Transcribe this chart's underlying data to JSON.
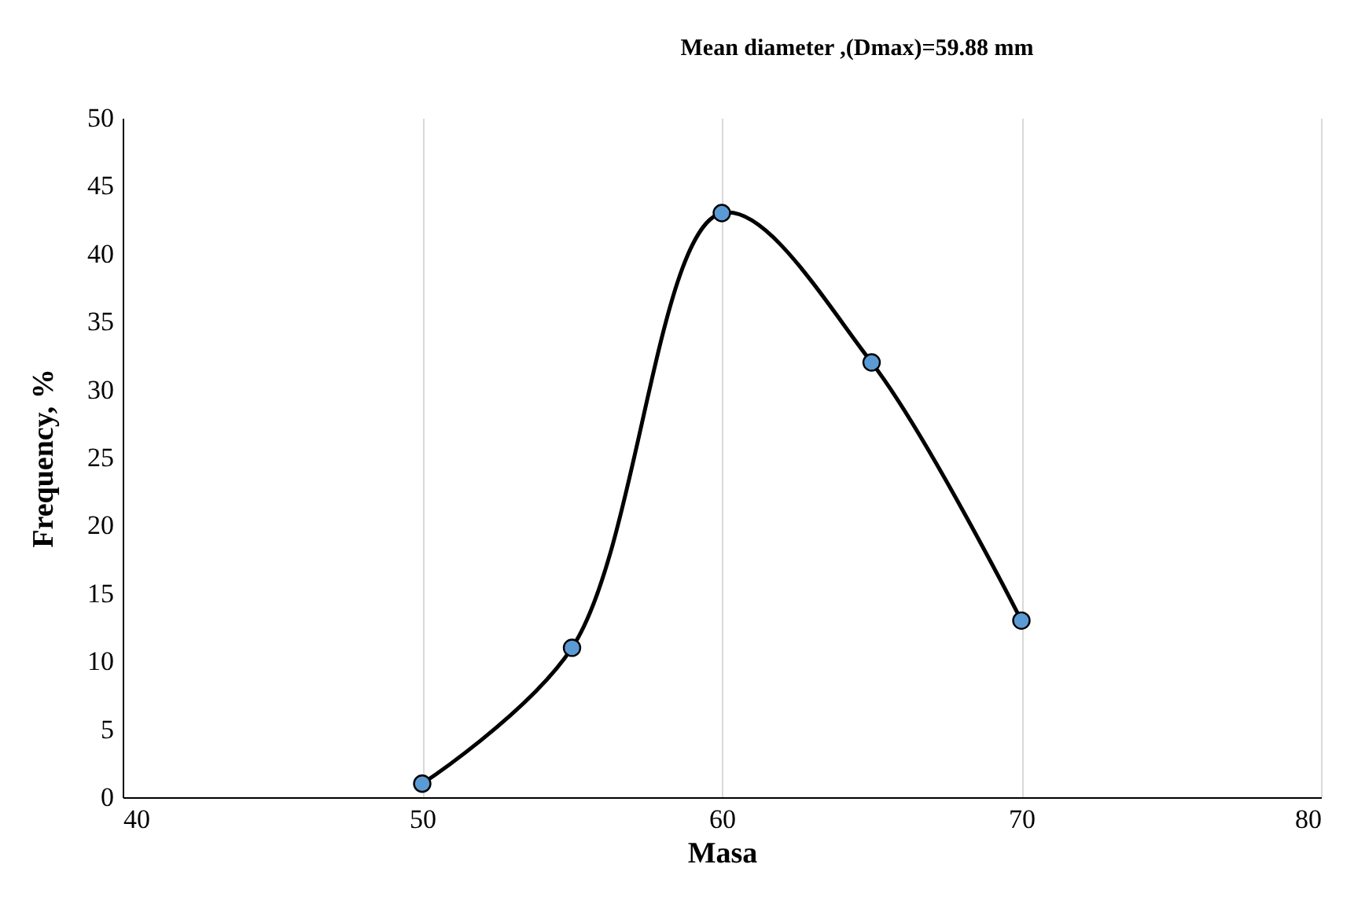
{
  "chart_data": {
    "type": "scatter",
    "title": "Mean diameter ,(Dmax)=59.88 mm",
    "xlabel": "Masa",
    "ylabel": "Frequency, %",
    "x": [
      50,
      55,
      60,
      65,
      70
    ],
    "series": [
      {
        "type": "line",
        "color": "#000000",
        "values": [
          1,
          11,
          43,
          32,
          13
        ],
        "marker": "none"
      },
      {
        "color": "#5b9bd5",
        "values": [
          1,
          11,
          43,
          32,
          13
        ],
        "marker": "circle"
      }
    ],
    "xlim": [
      40,
      80
    ],
    "xticks": [
      40,
      50,
      60,
      70,
      80
    ],
    "ylim": [
      0,
      50
    ],
    "yticks": [
      0,
      5,
      10,
      15,
      20,
      25,
      30,
      35,
      40,
      45,
      50
    ],
    "grid": "x"
  }
}
